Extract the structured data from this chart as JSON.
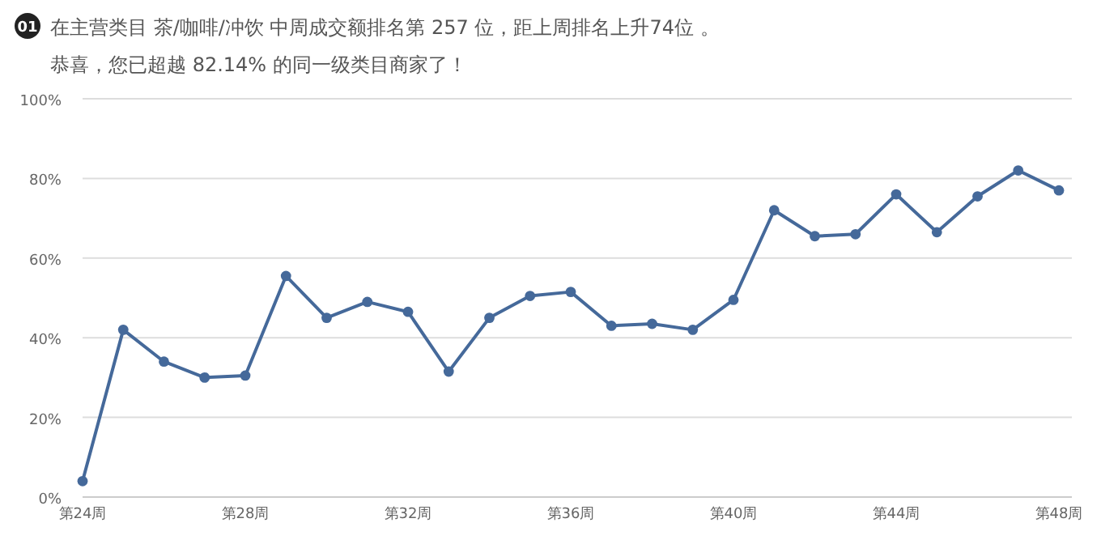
{
  "chart_data": {
    "type": "line",
    "title": "在主营类目 茶/咖啡/冲饮 中周成交额排名第 257 位，距上周排名上升74位 。",
    "subtitle": "恭喜，您已超越 82.14% 的同一级类目商家了！",
    "annotations": [
      "01"
    ],
    "categories": [
      "第24周",
      null,
      null,
      null,
      "第28周",
      null,
      null,
      null,
      "第32周",
      null,
      null,
      null,
      "第36周",
      null,
      null,
      null,
      "第40周",
      null,
      null,
      null,
      "第44周",
      null,
      null,
      null,
      "第48周"
    ],
    "series": [
      {
        "color": "#45699a",
        "values": [
          4,
          42,
          34,
          30,
          30.5,
          55.5,
          45,
          49,
          46.5,
          31.5,
          45,
          50.5,
          51.5,
          43,
          43.5,
          42,
          49.5,
          72,
          65.5,
          66,
          76,
          66.5,
          75.5,
          82,
          77
        ]
      }
    ],
    "ylim": [
      0,
      100
    ],
    "yticks": [
      {
        "value": 0,
        "label": "0%"
      },
      {
        "value": 20,
        "label": "20%"
      },
      {
        "value": 40,
        "label": "40%"
      },
      {
        "value": 60,
        "label": "60%"
      },
      {
        "value": 80,
        "label": "80%"
      },
      {
        "value": 100,
        "label": "100%"
      }
    ],
    "grid": "y",
    "marker": "circle",
    "line_style": "solid"
  }
}
